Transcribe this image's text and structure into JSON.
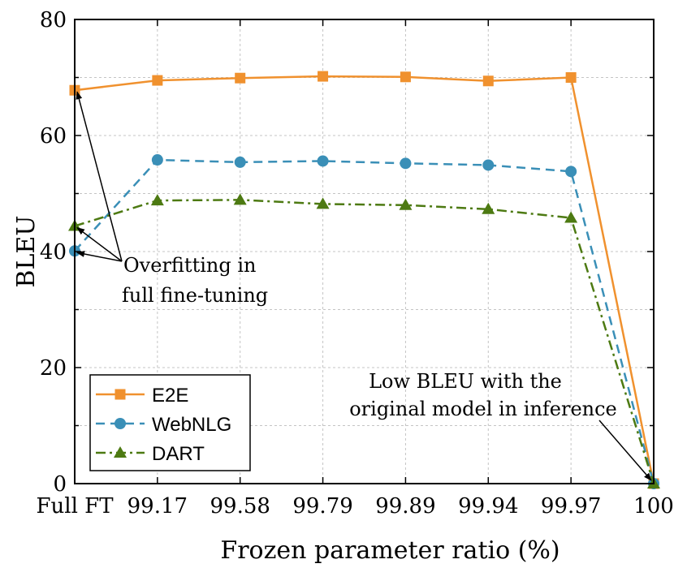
{
  "chart_data": {
    "type": "line",
    "xlabel": "Frozen parameter ratio (%)",
    "ylabel": "BLEU",
    "categories": [
      "Full FT",
      "99.17",
      "99.58",
      "99.79",
      "99.89",
      "99.94",
      "99.97",
      "100"
    ],
    "ylim": [
      0,
      80
    ],
    "yticks": [
      0,
      20,
      40,
      60,
      80
    ],
    "grid": true,
    "legend_position": "bottom-left",
    "series": [
      {
        "name": "E2E",
        "color": "#F0912E",
        "dash": "solid",
        "marker": "square",
        "values": [
          67.8,
          69.5,
          69.9,
          70.2,
          70.1,
          69.4,
          70.0,
          0.0
        ]
      },
      {
        "name": "WebNLG",
        "color": "#3A8FB7",
        "dash": "dashed",
        "marker": "circle",
        "values": [
          40.1,
          55.8,
          55.4,
          55.6,
          55.2,
          54.9,
          53.8,
          0.0
        ]
      },
      {
        "name": "DART",
        "color": "#4D7A12",
        "dash": "dashdot",
        "marker": "triangle",
        "values": [
          44.4,
          48.8,
          48.9,
          48.2,
          48.0,
          47.3,
          45.8,
          0.0
        ]
      }
    ],
    "annotations": [
      {
        "lines": [
          "Overfitting in",
          "full fine-tuning"
        ],
        "targets": [
          {
            "category": "Full FT",
            "value": 67.8
          },
          {
            "category": "Full FT",
            "value": 44.4
          },
          {
            "category": "Full FT",
            "value": 40.1
          }
        ]
      },
      {
        "lines": [
          "Low BLEU with the",
          "original model in inference"
        ],
        "targets": [
          {
            "category": "100",
            "value": 0.0
          }
        ]
      }
    ]
  }
}
